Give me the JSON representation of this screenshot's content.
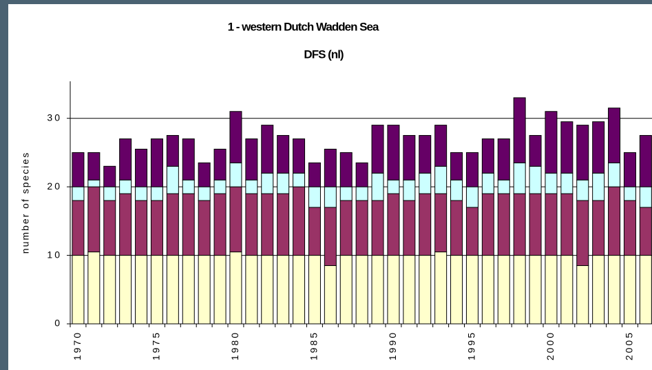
{
  "chart_data": {
    "type": "stacked_bar",
    "title": "1 - western Dutch Wadden Sea",
    "subtitle": "DFS (nl)",
    "y_label": "number of species",
    "categories": [
      "1970",
      null,
      null,
      null,
      null,
      "1975",
      null,
      null,
      null,
      null,
      "1980",
      null,
      null,
      null,
      null,
      "1985",
      null,
      null,
      null,
      null,
      "1990",
      null,
      null,
      null,
      null,
      "1995",
      null,
      null,
      null,
      null,
      "2000",
      null,
      null,
      null,
      null,
      "2005",
      null
    ],
    "series": [
      {
        "color": "#ffffcc",
        "values": [
          10,
          10.5,
          10,
          10,
          10,
          10,
          10,
          10,
          10,
          10,
          10.5,
          10,
          10,
          10,
          10,
          10,
          8.5,
          10,
          10,
          10,
          10,
          10,
          10,
          10.5,
          10,
          10,
          10,
          10,
          10,
          10,
          10,
          10,
          8.5,
          10,
          10,
          10,
          10
        ]
      },
      {
        "color": "#993366",
        "values": [
          8,
          9.5,
          8,
          9,
          8,
          8,
          9,
          9,
          8,
          9,
          9.5,
          9,
          9,
          9,
          10,
          7,
          8.5,
          8,
          8,
          8,
          9,
          8,
          9,
          8.5,
          8,
          7,
          9,
          9,
          9,
          9,
          9,
          9,
          9.5,
          8,
          10,
          8,
          7
        ]
      },
      {
        "color": "#ccffff",
        "values": [
          2,
          1,
          2,
          2,
          2,
          2,
          4,
          2,
          2,
          2,
          3.5,
          2,
          3,
          3,
          2,
          3,
          3,
          2,
          2,
          4,
          2,
          3,
          3,
          4,
          3,
          3,
          3,
          2,
          4.5,
          4,
          3,
          3,
          3,
          4,
          3.5,
          2,
          3
        ]
      },
      {
        "color": "#660066",
        "values": [
          5,
          4,
          3,
          6,
          5.5,
          7,
          4.5,
          6,
          3.5,
          4.5,
          7.5,
          6,
          7,
          5.5,
          5,
          3.5,
          5.5,
          5,
          3.5,
          7,
          8,
          6.5,
          5.5,
          6,
          4,
          5,
          5,
          6,
          9.5,
          4.5,
          9,
          7.5,
          8,
          7.5,
          8,
          5,
          7.5
        ]
      }
    ],
    "ylim": [
      0,
      35.4
    ],
    "yticks": [
      0,
      10,
      20,
      30
    ],
    "grid": true
  }
}
